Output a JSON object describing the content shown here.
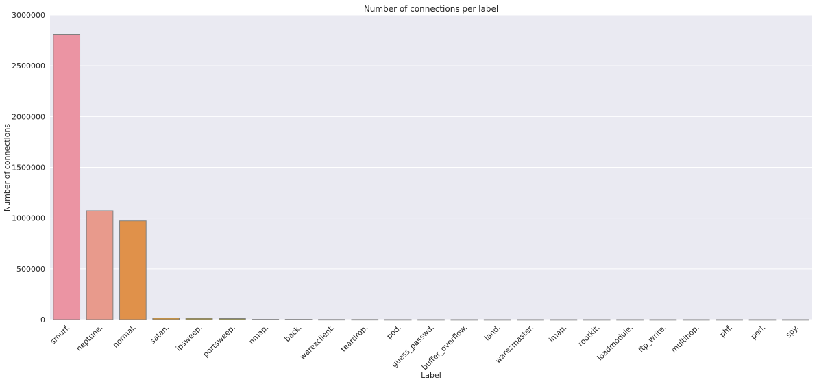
{
  "chart_data": {
    "type": "bar",
    "title": "Number of connections per label",
    "xlabel": "Label",
    "ylabel": "Number of connections",
    "ylim": [
      0,
      3000000
    ],
    "yticks": [
      "0",
      "500000",
      "1000000",
      "1500000",
      "2000000",
      "2500000",
      "3000000"
    ],
    "grid": true,
    "background": "#eaeaf2",
    "categories": [
      "smurf.",
      "neptune.",
      "normal.",
      "satan.",
      "ipsweep.",
      "portsweep.",
      "nmap.",
      "back.",
      "warezclient.",
      "teardrop.",
      "pod.",
      "guess_passwd.",
      "buffer_overflow.",
      "land.",
      "warezmaster.",
      "imap.",
      "rootkit.",
      "loadmodule.",
      "ftp_write.",
      "multihop.",
      "phf.",
      "perl.",
      "spy."
    ],
    "values": [
      2807886,
      1072017,
      972781,
      15892,
      12481,
      10413,
      2316,
      2203,
      1020,
      979,
      264,
      53,
      30,
      21,
      20,
      12,
      10,
      9,
      8,
      7,
      4,
      3,
      2
    ],
    "colors": [
      "#eb94a3",
      "#e89a8c",
      "#e0914a",
      "#cc933f",
      "#b09a3a",
      "#a39e3b",
      "#8fa33d",
      "#5ea543",
      "#4aa85c",
      "#4aa989",
      "#4aa89e",
      "#4aa7aa",
      "#4ba6b8",
      "#4ea5c9",
      "#66a1db",
      "#8b99e6",
      "#a98ee6",
      "#c382e6",
      "#d77ae0",
      "#e37bd1",
      "#e87fbe",
      "#ea86ae",
      "#eb8d9f"
    ]
  }
}
